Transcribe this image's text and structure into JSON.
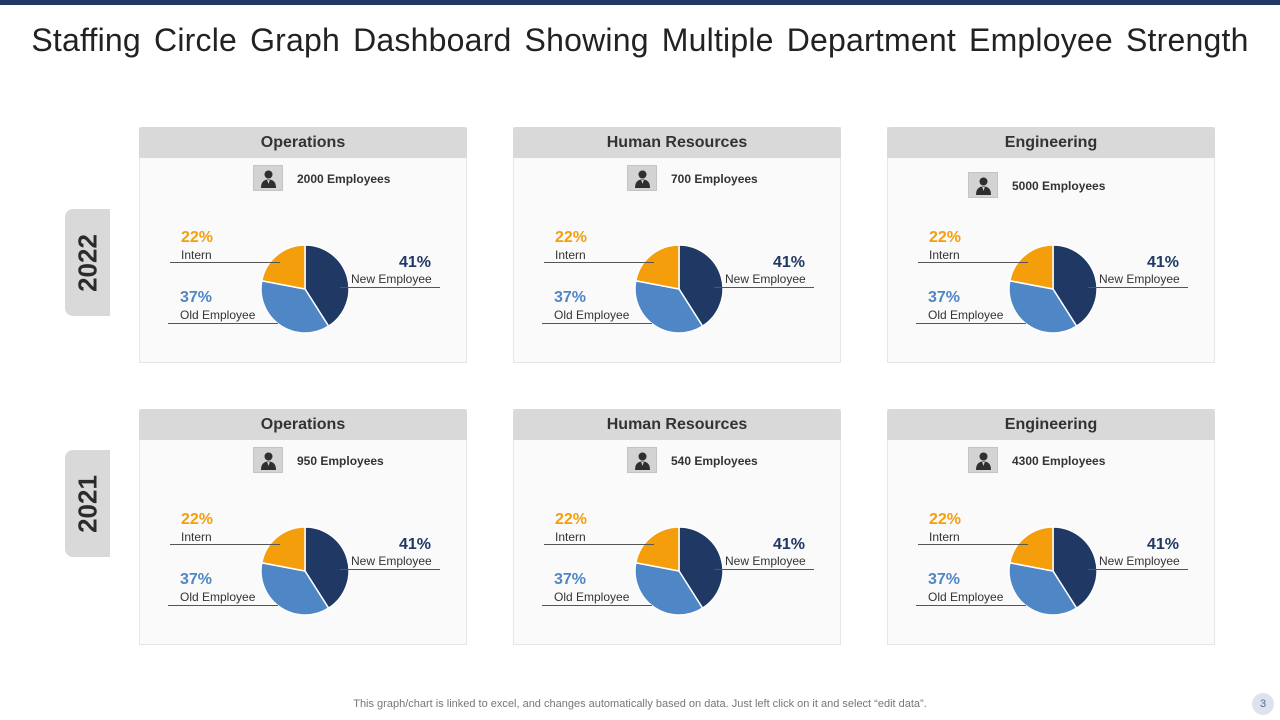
{
  "title": "Staffing Circle Graph Dashboard Showing Multiple Department Employee Strength",
  "footer_note": "This graph/chart is linked to excel,  and changes automatically based on data. Just left click on it and select “edit data”.",
  "page_number": "3",
  "icon": "user-icon",
  "colors": {
    "intern": "#f59e0b",
    "old_employee": "#4f86c6",
    "new_employee": "#1f3864"
  },
  "years": [
    {
      "year": "2022",
      "departments": [
        {
          "name": "Operations",
          "employees": "2000 Employees"
        },
        {
          "name": "Human Resources",
          "employees": "700 Employees"
        },
        {
          "name": "Engineering",
          "employees": "5000 Employees"
        }
      ]
    },
    {
      "year": "2021",
      "departments": [
        {
          "name": "Operations",
          "employees": "950 Employees"
        },
        {
          "name": "Human Resources",
          "employees": "540 Employees"
        },
        {
          "name": "Engineering",
          "employees": "4300 Employees"
        }
      ]
    }
  ],
  "chart_data": [
    {
      "type": "pie",
      "title": "Operations 2022",
      "labels": [
        "New Employee",
        "Old Employee",
        "Intern"
      ],
      "values": [
        41,
        37,
        22
      ],
      "value_labels": [
        "41%",
        "37%",
        "22%"
      ]
    },
    {
      "type": "pie",
      "title": "Human Resources 2022",
      "labels": [
        "New Employee",
        "Old Employee",
        "Intern"
      ],
      "values": [
        41,
        37,
        22
      ],
      "value_labels": [
        "41%",
        "37%",
        "22%"
      ]
    },
    {
      "type": "pie",
      "title": "Engineering 2022",
      "labels": [
        "New Employee",
        "Old Employee",
        "Intern"
      ],
      "values": [
        41,
        37,
        22
      ],
      "value_labels": [
        "41%",
        "37%",
        "22%"
      ]
    },
    {
      "type": "pie",
      "title": "Operations 2021",
      "labels": [
        "New Employee",
        "Old Employee",
        "Intern"
      ],
      "values": [
        41,
        37,
        22
      ],
      "value_labels": [
        "41%",
        "37%",
        "22%"
      ]
    },
    {
      "type": "pie",
      "title": "Human Resources 2021",
      "labels": [
        "New Employee",
        "Old Employee",
        "Intern"
      ],
      "values": [
        41,
        37,
        22
      ],
      "value_labels": [
        "41%",
        "37%",
        "22%"
      ]
    },
    {
      "type": "pie",
      "title": "Engineering 2021",
      "labels": [
        "New Employee",
        "Old Employee",
        "Intern"
      ],
      "values": [
        41,
        37,
        22
      ],
      "value_labels": [
        "41%",
        "37%",
        "22%"
      ]
    }
  ]
}
